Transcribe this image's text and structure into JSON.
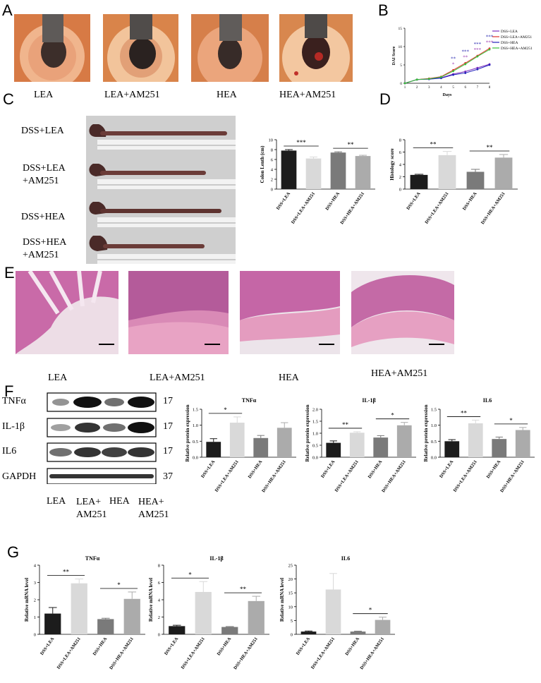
{
  "panels": {
    "A": "A",
    "B": "B",
    "C": "C",
    "D": "D",
    "E": "E",
    "F": "F",
    "G": "G"
  },
  "panelA": {
    "labels": [
      "LEA",
      "LEA+AM251",
      "HEA",
      "HEA+AM251"
    ]
  },
  "panelC": {
    "labels": [
      [
        "DSS+LEA"
      ],
      [
        "DSS+LEA",
        "+AM251"
      ],
      [
        "DSS+HEA"
      ],
      [
        "DSS+HEA",
        "+AM251"
      ]
    ]
  },
  "panelE": {
    "labels": [
      "LEA",
      "LEA+AM251",
      "HEA",
      "HEA+AM251"
    ]
  },
  "panelF": {
    "blot_rows": [
      {
        "name": "TNFα",
        "kda": "17"
      },
      {
        "name": "IL-1β",
        "kda": "17"
      },
      {
        "name": "IL6",
        "kda": "17"
      },
      {
        "name": "GAPDH",
        "kda": "37"
      }
    ],
    "lanes": [
      [
        "LEA"
      ],
      [
        "LEA+",
        "AM251"
      ],
      [
        "HEA"
      ],
      [
        "HEA+",
        "AM251"
      ]
    ]
  },
  "groups_dss": [
    "DSS+LEA",
    "DSS+LEA+AM251",
    "DSS+HEA",
    "DSS+HEA+AM251"
  ],
  "colors": {
    "lea": "#1c1c1c",
    "lea_am": "#d9d9d9",
    "hea": "#7a7a7a",
    "hea_am": "#ababab",
    "tissue": "#e8a9c6"
  },
  "chart_data": [
    {
      "id": "B",
      "type": "line",
      "xlabel": "Days",
      "ylabel": "DAI Score",
      "x": [
        1,
        2,
        3,
        4,
        5,
        6,
        7,
        8
      ],
      "xticks": [
        "1",
        "2",
        "3",
        "4",
        "5",
        "6",
        "7",
        "8"
      ],
      "yticks": [
        "0",
        "5",
        "10",
        "15"
      ],
      "ylim": [
        0,
        15
      ],
      "series": [
        {
          "name": "DSS+LEA",
          "color": "#7b2fbe",
          "values": [
            0,
            1,
            1.2,
            1.5,
            2.5,
            3.2,
            4.2,
            5.2
          ]
        },
        {
          "name": "DSS+LEA+AM251",
          "color": "#e0302a",
          "values": [
            0,
            1,
            1.3,
            1.8,
            3.6,
            5.5,
            7.5,
            9.5
          ]
        },
        {
          "name": "DSS+HEA",
          "color": "#2222bb",
          "values": [
            0,
            1,
            1.1,
            1.4,
            2.3,
            2.8,
            3.8,
            5.0
          ]
        },
        {
          "name": "DSS+HEA+AM251",
          "color": "#38c23a",
          "values": [
            0,
            1,
            1.2,
            1.7,
            3.3,
            5.2,
            7.3,
            9.2
          ]
        }
      ],
      "annotations": [
        {
          "day": 5,
          "text": "**",
          "color": "#2a2ab0"
        },
        {
          "day": 6,
          "text": "***",
          "color": "#2a2ab0"
        },
        {
          "day": 7,
          "text": "***",
          "color": "#2a2ab0"
        },
        {
          "day": 8,
          "text": "***",
          "color": "#2a2ab0"
        },
        {
          "day": 5,
          "text": "*",
          "color": "#9a3ab0"
        },
        {
          "day": 6,
          "text": "**",
          "color": "#9a3ab0"
        },
        {
          "day": 7,
          "text": "***",
          "color": "#9a3ab0"
        },
        {
          "day": 8,
          "text": "***",
          "color": "#9a3ab0"
        }
      ]
    },
    {
      "id": "C",
      "type": "bar",
      "ylabel": "Colon Lenth (cm)",
      "yticks": [
        "0",
        "2",
        "4",
        "6",
        "8",
        "10"
      ],
      "ylim": [
        0,
        10
      ],
      "values": [
        7.8,
        6.2,
        7.4,
        6.7
      ],
      "errors": [
        0.2,
        0.3,
        0.15,
        0.15
      ],
      "sig": [
        {
          "a": 0,
          "b": 1,
          "text": "***"
        },
        {
          "a": 2,
          "b": 3,
          "text": "**"
        }
      ]
    },
    {
      "id": "D",
      "type": "bar",
      "ylabel": "Histology score",
      "yticks": [
        "0",
        "2",
        "4",
        "6",
        "8"
      ],
      "ylim": [
        0,
        8
      ],
      "values": [
        2.3,
        5.5,
        2.8,
        5.1
      ],
      "errors": [
        0.1,
        0.6,
        0.4,
        0.5
      ],
      "sig": [
        {
          "a": 0,
          "b": 1,
          "text": "**"
        },
        {
          "a": 2,
          "b": 3,
          "text": "**"
        }
      ]
    },
    {
      "id": "F1",
      "type": "bar",
      "title": "TNFα",
      "ylabel": "Relative protein expression",
      "yticks": [
        "0.0",
        "0.5",
        "1.0",
        "1.5"
      ],
      "ylim": [
        0,
        1.5
      ],
      "values": [
        0.48,
        1.08,
        0.6,
        0.92
      ],
      "errors": [
        0.1,
        0.18,
        0.08,
        0.16
      ],
      "sig": [
        {
          "a": 0,
          "b": 1,
          "text": "*"
        }
      ]
    },
    {
      "id": "F2",
      "type": "bar",
      "title": "IL-1β",
      "ylabel": "Relative protein expression",
      "yticks": [
        "0.0",
        "0.5",
        "1.0",
        "1.5",
        "2.0"
      ],
      "ylim": [
        0,
        2.0
      ],
      "values": [
        0.6,
        1.02,
        0.82,
        1.33
      ],
      "errors": [
        0.08,
        0.04,
        0.08,
        0.12
      ],
      "sig": [
        {
          "a": 0,
          "b": 1,
          "text": "**"
        },
        {
          "a": 2,
          "b": 3,
          "text": "*"
        }
      ]
    },
    {
      "id": "F3",
      "type": "bar",
      "title": "IL6",
      "ylabel": "Relative protein expression",
      "yticks": [
        "0.0",
        "0.5",
        "1.0",
        "1.5"
      ],
      "ylim": [
        0,
        1.5
      ],
      "values": [
        0.5,
        1.06,
        0.57,
        0.85
      ],
      "errors": [
        0.05,
        0.1,
        0.06,
        0.08
      ],
      "sig": [
        {
          "a": 0,
          "b": 1,
          "text": "**"
        },
        {
          "a": 2,
          "b": 3,
          "text": "*"
        }
      ]
    },
    {
      "id": "G1",
      "type": "bar",
      "title": "TNFα",
      "ylabel": "Relative mRNA level",
      "yticks": [
        "0",
        "1",
        "2",
        "3",
        "4"
      ],
      "ylim": [
        0,
        4
      ],
      "values": [
        1.2,
        2.95,
        0.88,
        2.05
      ],
      "errors": [
        0.35,
        0.25,
        0.05,
        0.4
      ],
      "sig": [
        {
          "a": 0,
          "b": 1,
          "text": "**"
        },
        {
          "a": 2,
          "b": 3,
          "text": "*"
        }
      ]
    },
    {
      "id": "G2",
      "type": "bar",
      "title": "IL-1β",
      "ylabel": "Relative mRNA level",
      "yticks": [
        "0",
        "2",
        "4",
        "6",
        "8"
      ],
      "ylim": [
        0,
        8
      ],
      "values": [
        0.95,
        4.9,
        0.85,
        3.85
      ],
      "errors": [
        0.1,
        1.2,
        0.05,
        0.55
      ],
      "sig": [
        {
          "a": 0,
          "b": 1,
          "text": "*"
        },
        {
          "a": 2,
          "b": 3,
          "text": "**"
        }
      ]
    },
    {
      "id": "G3",
      "type": "bar",
      "title": "IL6",
      "ylabel": "Relative mRNA level",
      "yticks": [
        "0",
        "5",
        "10",
        "15",
        "20",
        "25"
      ],
      "ylim": [
        0,
        25
      ],
      "values": [
        1.0,
        16.2,
        1.0,
        5.2
      ],
      "errors": [
        0.2,
        5.8,
        0.15,
        1.0
      ],
      "sig": [
        {
          "a": 2,
          "b": 3,
          "text": "*"
        }
      ]
    }
  ]
}
